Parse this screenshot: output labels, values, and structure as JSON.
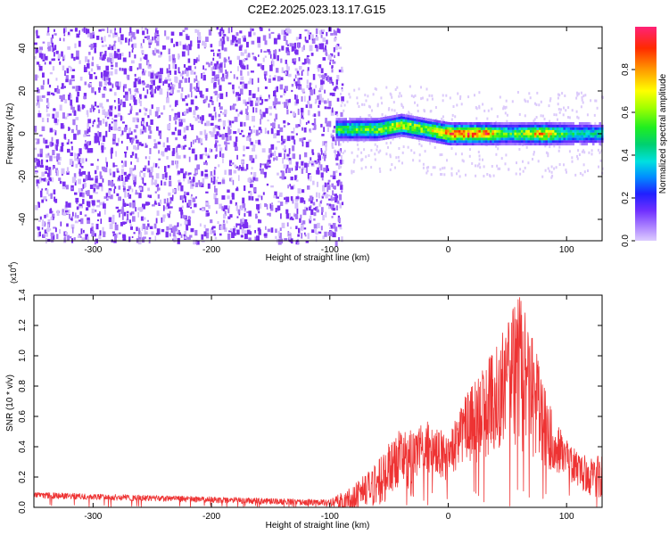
{
  "figure": {
    "title": "C2E2.2025.023.13.17.G15"
  },
  "chart_data": [
    {
      "type": "heatmap",
      "xlabel": "Height of straight line (km)",
      "ylabel": "Frequency (Hz)",
      "xlim": [
        -350,
        130
      ],
      "ylim": [
        -50,
        50
      ],
      "xticks": [
        "-300",
        "-200",
        "-100",
        "0",
        "100"
      ],
      "xtick_values": [
        -300,
        -200,
        -100,
        0,
        100
      ],
      "yticks": [
        "-40",
        "-20",
        "0",
        "20",
        "40"
      ],
      "ytick_values": [
        -40,
        -20,
        0,
        20,
        40
      ],
      "colorbar": {
        "label": "Normalized spectral amplitude",
        "range": [
          0,
          1
        ],
        "ticks": [
          "0.0",
          "0.2",
          "0.4",
          "0.6",
          "0.8"
        ],
        "tick_values": [
          0.0,
          0.2,
          0.4,
          0.6,
          0.8
        ],
        "colormap": "rainbow"
      },
      "noise_region": {
        "x_range": [
          -350,
          -90
        ],
        "amplitude_range": [
          0.05,
          0.2
        ]
      },
      "signal_band": {
        "x_range": [
          -95,
          130
        ],
        "center_frequency_points": [
          [
            -95,
            2
          ],
          [
            -60,
            2
          ],
          [
            -40,
            4
          ],
          [
            -20,
            2
          ],
          [
            0,
            0
          ],
          [
            30,
            0
          ],
          [
            60,
            0
          ],
          [
            90,
            0
          ],
          [
            130,
            0
          ]
        ],
        "peak_amplitude_points": [
          [
            -95,
            0.5
          ],
          [
            -60,
            0.6
          ],
          [
            -40,
            0.7
          ],
          [
            -20,
            0.6
          ],
          [
            0,
            0.9
          ],
          [
            30,
            0.85
          ],
          [
            50,
            0.5
          ],
          [
            80,
            0.8
          ],
          [
            100,
            0.45
          ],
          [
            130,
            0.4
          ]
        ]
      },
      "grid": false
    },
    {
      "type": "line",
      "xlabel": "Height of straight line (km)",
      "ylabel": "SNR (10 * v/v)",
      "y_scale_label": "(x10",
      "y_scale_exponent": "4",
      "y_scale_close": ")",
      "xlim": [
        -350,
        130
      ],
      "ylim": [
        0,
        1.4
      ],
      "xticks": [
        "-300",
        "-200",
        "-100",
        "0",
        "100"
      ],
      "xtick_values": [
        -300,
        -200,
        -100,
        0,
        100
      ],
      "yticks": [
        "0.0",
        "0.2",
        "0.4",
        "0.6",
        "0.8",
        "1.0",
        "1.2",
        "1.4"
      ],
      "ytick_values": [
        0.0,
        0.2,
        0.4,
        0.6,
        0.8,
        1.0,
        1.2,
        1.4
      ],
      "series": [
        {
          "color": "#ee3333",
          "envelope_points": [
            [
              -350,
              0.08
            ],
            [
              -300,
              0.07
            ],
            [
              -250,
              0.06
            ],
            [
              -200,
              0.05
            ],
            [
              -150,
              0.04
            ],
            [
              -100,
              0.03
            ],
            [
              -80,
              0.05
            ],
            [
              -70,
              0.12
            ],
            [
              -60,
              0.15
            ],
            [
              -50,
              0.25
            ],
            [
              -40,
              0.35
            ],
            [
              -30,
              0.28
            ],
            [
              -20,
              0.4
            ],
            [
              -10,
              0.38
            ],
            [
              0,
              0.3
            ],
            [
              10,
              0.5
            ],
            [
              20,
              0.55
            ],
            [
              30,
              0.62
            ],
            [
              40,
              0.72
            ],
            [
              50,
              0.82
            ],
            [
              60,
              0.9
            ],
            [
              70,
              0.75
            ],
            [
              80,
              0.55
            ],
            [
              90,
              0.42
            ],
            [
              100,
              0.32
            ],
            [
              110,
              0.25
            ],
            [
              120,
              0.2
            ],
            [
              130,
              0.2
            ]
          ],
          "peak_points": [
            [
              -350,
              0.1
            ],
            [
              -300,
              0.09
            ],
            [
              -250,
              0.08
            ],
            [
              -200,
              0.07
            ],
            [
              -150,
              0.06
            ],
            [
              -100,
              0.05
            ],
            [
              -80,
              0.15
            ],
            [
              -70,
              0.22
            ],
            [
              -60,
              0.3
            ],
            [
              -50,
              0.42
            ],
            [
              -40,
              0.55
            ],
            [
              -30,
              0.5
            ],
            [
              -20,
              0.58
            ],
            [
              -10,
              0.55
            ],
            [
              0,
              0.45
            ],
            [
              10,
              0.7
            ],
            [
              20,
              0.8
            ],
            [
              30,
              0.95
            ],
            [
              40,
              1.1
            ],
            [
              50,
              1.25
            ],
            [
              60,
              1.42
            ],
            [
              70,
              1.2
            ],
            [
              80,
              0.85
            ],
            [
              90,
              0.6
            ],
            [
              100,
              0.45
            ],
            [
              110,
              0.38
            ],
            [
              120,
              0.32
            ],
            [
              130,
              0.35
            ]
          ]
        }
      ],
      "grid": false
    }
  ]
}
